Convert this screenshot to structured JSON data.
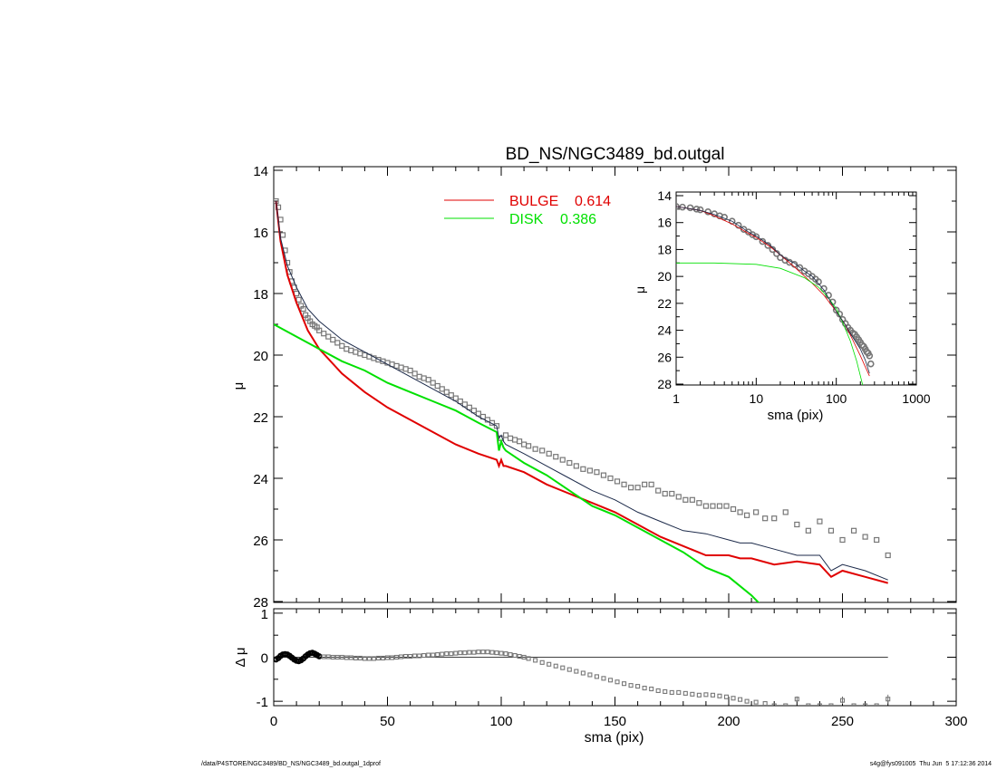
{
  "footer": {
    "path": "/data/P4STORE/NGC3489/BD_NS/NGC3489_bd.outgal_1dprof",
    "stamp": "s4g@fys091005  Thu Jun  5 17:12:36 2014"
  },
  "colors": {
    "bulge": "#e00000",
    "disk": "#00e000",
    "total": "#1c2a4a",
    "data": "#777777"
  },
  "chart_data": [
    {
      "id": "main",
      "type": "line",
      "title": "BD_NS/NGC3489_bd.outgal",
      "xlabel": "",
      "ylabel": "μ",
      "xlim": [
        0,
        300
      ],
      "ylim": [
        28,
        14
      ],
      "yticks": [
        14,
        16,
        18,
        20,
        22,
        24,
        26,
        28
      ],
      "legend": [
        {
          "label": "BULGE",
          "value": "0.614",
          "color": "#e00000"
        },
        {
          "label": "DISK",
          "value": "0.386",
          "color": "#00e000"
        }
      ],
      "series": [
        {
          "name": "BULGE",
          "color": "#e00000",
          "x": [
            1,
            3,
            6,
            10,
            15,
            20,
            30,
            40,
            50,
            60,
            70,
            80,
            90,
            98,
            99,
            100,
            101,
            102,
            110,
            120,
            130,
            140,
            150,
            160,
            170,
            180,
            190,
            200,
            205,
            210,
            220,
            230,
            240,
            245,
            250,
            260,
            270
          ],
          "y": [
            15.0,
            16.3,
            17.4,
            18.3,
            19.2,
            19.8,
            20.6,
            21.2,
            21.7,
            22.1,
            22.5,
            22.9,
            23.2,
            23.4,
            23.6,
            23.4,
            23.6,
            23.6,
            23.8,
            24.2,
            24.5,
            24.8,
            25.1,
            25.5,
            25.9,
            26.2,
            26.5,
            26.5,
            26.6,
            26.6,
            26.8,
            26.7,
            26.8,
            27.2,
            27.0,
            27.2,
            27.4
          ]
        },
        {
          "name": "DISK",
          "color": "#00e000",
          "x": [
            0,
            10,
            20,
            30,
            40,
            50,
            60,
            70,
            80,
            90,
            98,
            99,
            100,
            101,
            102,
            110,
            120,
            130,
            140,
            150,
            160,
            170,
            180,
            190,
            200,
            210,
            214
          ],
          "y": [
            19.0,
            19.4,
            19.8,
            20.2,
            20.5,
            20.9,
            21.2,
            21.5,
            21.8,
            22.2,
            22.5,
            23.1,
            22.8,
            23.0,
            23.1,
            23.5,
            23.9,
            24.4,
            24.9,
            25.2,
            25.6,
            26.0,
            26.4,
            26.9,
            27.2,
            27.8,
            28.1
          ]
        },
        {
          "name": "TOTAL",
          "color": "#1c2a4a",
          "x": [
            1,
            3,
            6,
            10,
            15,
            20,
            30,
            40,
            50,
            60,
            70,
            80,
            90,
            98,
            99,
            100,
            101,
            102,
            110,
            120,
            130,
            140,
            150,
            160,
            170,
            180,
            190,
            200,
            205,
            210,
            220,
            230,
            240,
            245,
            250,
            260,
            270
          ],
          "y": [
            15.0,
            16.2,
            17.1,
            17.8,
            18.5,
            18.9,
            19.5,
            19.9,
            20.3,
            20.7,
            21.1,
            21.5,
            22.0,
            22.3,
            22.7,
            22.6,
            22.8,
            22.9,
            23.2,
            23.6,
            24.0,
            24.4,
            24.7,
            25.1,
            25.4,
            25.7,
            25.8,
            26.0,
            26.1,
            26.1,
            26.3,
            26.5,
            26.5,
            27.0,
            26.8,
            27.0,
            27.3
          ]
        }
      ],
      "points": {
        "name": "DATA",
        "x": [
          1,
          2,
          3,
          4,
          5,
          6,
          7,
          8,
          9,
          10,
          11,
          12,
          13,
          14,
          15,
          16,
          17,
          18,
          19,
          20,
          22,
          24,
          26,
          28,
          30,
          32,
          34,
          36,
          38,
          40,
          42,
          44,
          46,
          48,
          50,
          52,
          54,
          56,
          58,
          60,
          62,
          64,
          66,
          68,
          70,
          72,
          74,
          76,
          78,
          80,
          82,
          84,
          86,
          88,
          90,
          92,
          94,
          96,
          98,
          100,
          102,
          104,
          106,
          108,
          110,
          112,
          115,
          118,
          121,
          124,
          127,
          130,
          133,
          136,
          139,
          142,
          145,
          148,
          151,
          154,
          157,
          160,
          163,
          166,
          169,
          172,
          175,
          178,
          181,
          184,
          187,
          190,
          193,
          196,
          199,
          202,
          205,
          208,
          212,
          216,
          220,
          225,
          230,
          235,
          240,
          245,
          250,
          255,
          260,
          265,
          270
        ],
        "y": [
          15.0,
          15.2,
          15.6,
          16.1,
          16.6,
          17.0,
          17.3,
          17.6,
          17.8,
          18.0,
          18.2,
          18.4,
          18.5,
          18.7,
          18.8,
          18.9,
          19.0,
          19.05,
          19.1,
          19.2,
          19.3,
          19.4,
          19.5,
          19.6,
          19.7,
          19.8,
          19.85,
          19.9,
          19.95,
          20.0,
          20.05,
          20.1,
          20.15,
          20.2,
          20.25,
          20.3,
          20.35,
          20.4,
          20.45,
          20.5,
          20.6,
          20.7,
          20.75,
          20.8,
          20.9,
          21.0,
          21.1,
          21.2,
          21.3,
          21.4,
          21.5,
          21.6,
          21.7,
          21.8,
          21.9,
          22.0,
          22.1,
          22.2,
          22.3,
          22.7,
          22.6,
          22.7,
          22.75,
          22.8,
          22.9,
          22.95,
          23.05,
          23.1,
          23.2,
          23.3,
          23.4,
          23.5,
          23.6,
          23.7,
          23.75,
          23.8,
          23.9,
          24.0,
          24.1,
          24.2,
          24.3,
          24.3,
          24.2,
          24.2,
          24.4,
          24.5,
          24.5,
          24.6,
          24.7,
          24.7,
          24.8,
          24.9,
          24.9,
          24.9,
          24.9,
          25.0,
          25.1,
          25.2,
          25.1,
          25.3,
          25.3,
          25.1,
          25.5,
          25.7,
          25.4,
          25.7,
          26.0,
          25.7,
          25.9,
          26.0,
          26.5
        ]
      }
    },
    {
      "id": "residual",
      "type": "scatter",
      "xlabel": "sma (pix)",
      "ylabel": "Δ μ",
      "xlim": [
        0,
        300
      ],
      "ylim": [
        -1.1,
        1.1
      ],
      "xticks": [
        0,
        50,
        100,
        150,
        200,
        250,
        300
      ],
      "yticks": [
        -1,
        0,
        1
      ],
      "zero_line": {
        "x": [
          0,
          270
        ],
        "y": 0
      },
      "points": {
        "x": [
          1,
          2,
          3,
          4,
          5,
          6,
          7,
          8,
          9,
          10,
          11,
          12,
          13,
          14,
          15,
          16,
          17,
          18,
          19,
          20,
          22,
          24,
          26,
          28,
          30,
          32,
          34,
          36,
          38,
          40,
          42,
          44,
          46,
          48,
          50,
          52,
          54,
          56,
          58,
          60,
          62,
          64,
          66,
          68,
          70,
          72,
          74,
          76,
          78,
          80,
          82,
          84,
          86,
          88,
          90,
          92,
          94,
          96,
          98,
          100,
          102,
          104,
          106,
          108,
          110,
          112,
          115,
          118,
          121,
          124,
          127,
          130,
          133,
          136,
          139,
          142,
          145,
          148,
          151,
          154,
          157,
          160,
          163,
          166,
          169,
          172,
          175,
          178,
          181,
          184,
          187,
          190,
          193,
          196,
          199,
          202,
          205,
          208,
          212,
          216,
          220,
          225,
          230,
          235,
          240,
          245,
          250,
          255,
          260,
          265,
          270
        ],
        "y": [
          -0.05,
          -0.02,
          0.03,
          0.06,
          0.07,
          0.06,
          0.03,
          -0.01,
          -0.05,
          -0.08,
          -0.09,
          -0.07,
          -0.03,
          0.02,
          0.06,
          0.09,
          0.1,
          0.08,
          0.05,
          0.02,
          0.01,
          0.01,
          0.0,
          0.0,
          0.0,
          -0.01,
          -0.01,
          -0.02,
          -0.02,
          -0.03,
          -0.03,
          -0.03,
          -0.02,
          -0.02,
          -0.01,
          -0.01,
          0.0,
          0.01,
          0.02,
          0.02,
          0.03,
          0.03,
          0.04,
          0.05,
          0.05,
          0.06,
          0.07,
          0.08,
          0.08,
          0.09,
          0.1,
          0.1,
          0.11,
          0.11,
          0.12,
          0.12,
          0.12,
          0.11,
          0.1,
          0.09,
          0.08,
          0.06,
          0.04,
          0.02,
          0.0,
          -0.03,
          -0.07,
          -0.12,
          -0.16,
          -0.2,
          -0.24,
          -0.28,
          -0.32,
          -0.36,
          -0.4,
          -0.44,
          -0.48,
          -0.52,
          -0.56,
          -0.6,
          -0.64,
          -0.66,
          -0.7,
          -0.72,
          -0.76,
          -0.78,
          -0.8,
          -0.8,
          -0.82,
          -0.84,
          -0.86,
          -0.85,
          -0.86,
          -0.88,
          -0.9,
          -0.93,
          -0.96,
          -1.0,
          -1.02,
          -1.05,
          -1.1,
          -1.1,
          -0.95,
          -1.1,
          -1.1,
          -1.1,
          -0.98,
          -1.1,
          -1.1,
          -1.1,
          -0.95
        ],
        "errors": [
          0.0,
          0.0,
          0.0,
          0.0,
          0.0,
          0.0,
          0.0,
          0.0,
          0.0,
          0.0,
          0.0,
          0.0,
          0.0,
          0.0,
          0.0,
          0.0,
          0.0,
          0.0,
          0.0,
          0.0,
          0.0,
          0.0,
          0.0,
          0.0,
          0.0,
          0.0,
          0.0,
          0.0,
          0.0,
          0.0,
          0.0,
          0.0,
          0.0,
          0.0,
          0.0,
          0.0,
          0.0,
          0.0,
          0.0,
          0.0,
          0.0,
          0.0,
          0.0,
          0.0,
          0.0,
          0.0,
          0.0,
          0.0,
          0.0,
          0.0,
          0.0,
          0.0,
          0.0,
          0.0,
          0.0,
          0.0,
          0.0,
          0.0,
          0.0,
          0.0,
          0.0,
          0.0,
          0.0,
          0.0,
          0.0,
          0.0,
          0.0,
          0.0,
          0.0,
          0.0,
          0.0,
          0.0,
          0.0,
          0.0,
          0.0,
          0.0,
          0.0,
          0.0,
          0.0,
          0.0,
          0.0,
          0.0,
          0.0,
          0.0,
          0.0,
          0.0,
          0.0,
          0.0,
          0.0,
          0.0,
          0.0,
          0.0,
          0.0,
          0.0,
          0.0,
          0.0,
          0.0,
          0.0,
          0.0,
          0.0,
          0.0,
          0.0,
          0.06,
          0.0,
          0.0,
          0.0,
          0.08,
          0.0,
          0.0,
          0.0,
          0.1
        ]
      }
    },
    {
      "id": "inset",
      "type": "line",
      "xlabel": "sma (pix)",
      "ylabel": "μ",
      "xscale": "log",
      "xlim": [
        1,
        1000
      ],
      "ylim": [
        28,
        14
      ],
      "xticks": [
        1,
        10,
        100,
        1000
      ],
      "yticks": [
        14,
        16,
        18,
        20,
        22,
        24,
        26,
        28
      ],
      "series": [
        {
          "name": "BULGE",
          "color": "#e00000",
          "x": [
            1,
            2,
            3,
            5,
            8,
            10,
            15,
            20,
            30,
            50,
            70,
            100,
            130,
            160,
            200,
            230,
            260
          ],
          "y": [
            14.8,
            15.1,
            15.5,
            16.1,
            16.8,
            17.1,
            17.8,
            18.4,
            19.3,
            20.5,
            21.4,
            22.6,
            23.6,
            24.7,
            25.9,
            26.7,
            27.4
          ]
        },
        {
          "name": "DISK",
          "color": "#00e000",
          "x": [
            1,
            3,
            10,
            20,
            40,
            60,
            80,
            100,
            120,
            150,
            180,
            200,
            214
          ],
          "y": [
            19.0,
            19.0,
            19.1,
            19.4,
            20.1,
            20.8,
            21.6,
            22.4,
            23.4,
            24.8,
            26.3,
            27.4,
            28.1
          ]
        },
        {
          "name": "TOTAL",
          "color": "#1c2a4a",
          "x": [
            1,
            2,
            3,
            5,
            8,
            10,
            15,
            20,
            25,
            30,
            40,
            50,
            70,
            100,
            130,
            160,
            200,
            230,
            260
          ],
          "y": [
            14.8,
            15.1,
            15.4,
            15.9,
            16.7,
            17.0,
            17.7,
            18.4,
            18.8,
            19.0,
            19.6,
            20.0,
            21.0,
            22.6,
            23.6,
            24.5,
            25.4,
            26.2,
            27.2
          ]
        }
      ],
      "points": {
        "x": [
          1,
          1.2,
          1.5,
          1.8,
          2,
          2.5,
          3,
          3.5,
          4,
          5,
          6,
          7,
          8,
          9,
          10,
          12,
          14,
          16,
          18,
          20,
          23,
          26,
          30,
          35,
          40,
          45,
          50,
          55,
          60,
          70,
          80,
          90,
          100,
          110,
          120,
          130,
          140,
          150,
          160,
          170,
          180,
          190,
          200,
          210,
          220,
          230,
          240,
          250,
          260,
          270
        ],
        "y": [
          14.8,
          14.85,
          14.9,
          15.0,
          15.05,
          15.2,
          15.35,
          15.5,
          15.6,
          15.9,
          16.2,
          16.5,
          16.7,
          16.9,
          17.05,
          17.4,
          17.7,
          18.0,
          18.3,
          18.6,
          18.8,
          18.95,
          19.1,
          19.35,
          19.6,
          19.8,
          20.0,
          20.2,
          20.4,
          20.9,
          21.4,
          21.9,
          22.5,
          22.8,
          23.2,
          23.5,
          23.8,
          24.0,
          24.2,
          24.3,
          24.5,
          24.7,
          24.9,
          25.1,
          25.2,
          25.4,
          25.6,
          25.7,
          25.9,
          26.5
        ]
      }
    }
  ]
}
